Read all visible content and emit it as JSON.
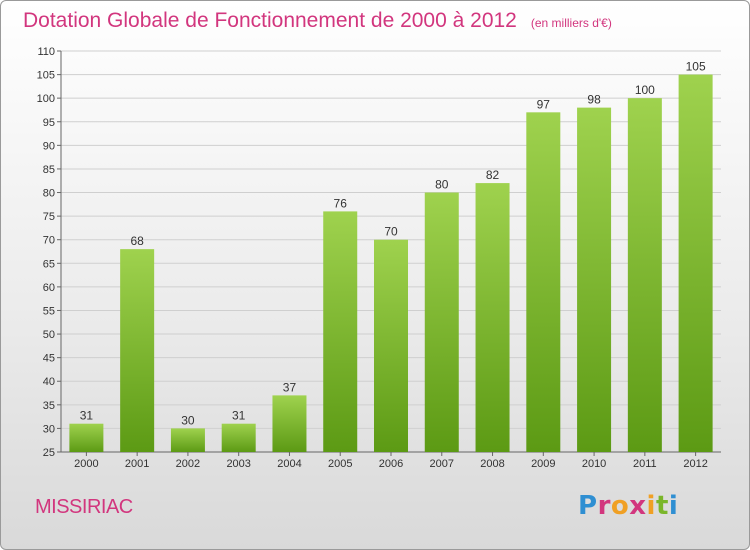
{
  "header": {
    "title": "Dotation Globale de Fonctionnement de 2000 à 2012",
    "subtitle": "(en milliers d'€)"
  },
  "footer": {
    "place": "MISSIRIAC",
    "brand": "Proxiti"
  },
  "colors": {
    "title": "#d2367e",
    "bar_top": "#9fd24e",
    "bar_bottom": "#5c9a14",
    "grid": "#cfcfcf"
  },
  "chart_data": {
    "type": "bar",
    "title": "Dotation Globale de Fonctionnement de 2000 à 2012",
    "subtitle": "(en milliers d'€)",
    "xlabel": "",
    "ylabel": "",
    "categories": [
      "2000",
      "2001",
      "2002",
      "2003",
      "2004",
      "2005",
      "2006",
      "2007",
      "2008",
      "2009",
      "2010",
      "2011",
      "2012"
    ],
    "values": [
      31,
      68,
      30,
      31,
      37,
      76,
      70,
      80,
      82,
      97,
      98,
      100,
      105
    ],
    "ylim": [
      25,
      110
    ],
    "yticks": [
      25,
      30,
      35,
      40,
      45,
      50,
      55,
      60,
      65,
      70,
      75,
      80,
      85,
      90,
      95,
      100,
      105,
      110
    ],
    "grid": true,
    "legend": "none"
  }
}
